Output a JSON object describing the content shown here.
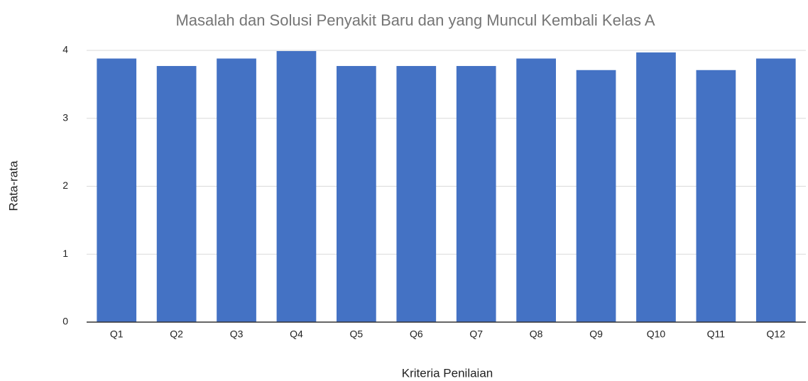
{
  "chart_data": {
    "type": "bar",
    "title": "Masalah dan Solusi Penyakit Baru dan yang Muncul Kembali Kelas A",
    "x_label": "Kriteria Penilaian",
    "y_label": "Rata-rata",
    "categories": [
      "Q1",
      "Q2",
      "Q3",
      "Q4",
      "Q5",
      "Q6",
      "Q7",
      "Q8",
      "Q9",
      "Q10",
      "Q11",
      "Q12"
    ],
    "values": [
      3.88,
      3.77,
      3.88,
      3.99,
      3.77,
      3.77,
      3.77,
      3.88,
      3.71,
      3.97,
      3.71,
      3.88
    ],
    "color": "#4472c4",
    "ylim": [
      0,
      4
    ],
    "yticks": [
      0,
      1,
      2,
      3,
      4
    ],
    "grid": true
  }
}
